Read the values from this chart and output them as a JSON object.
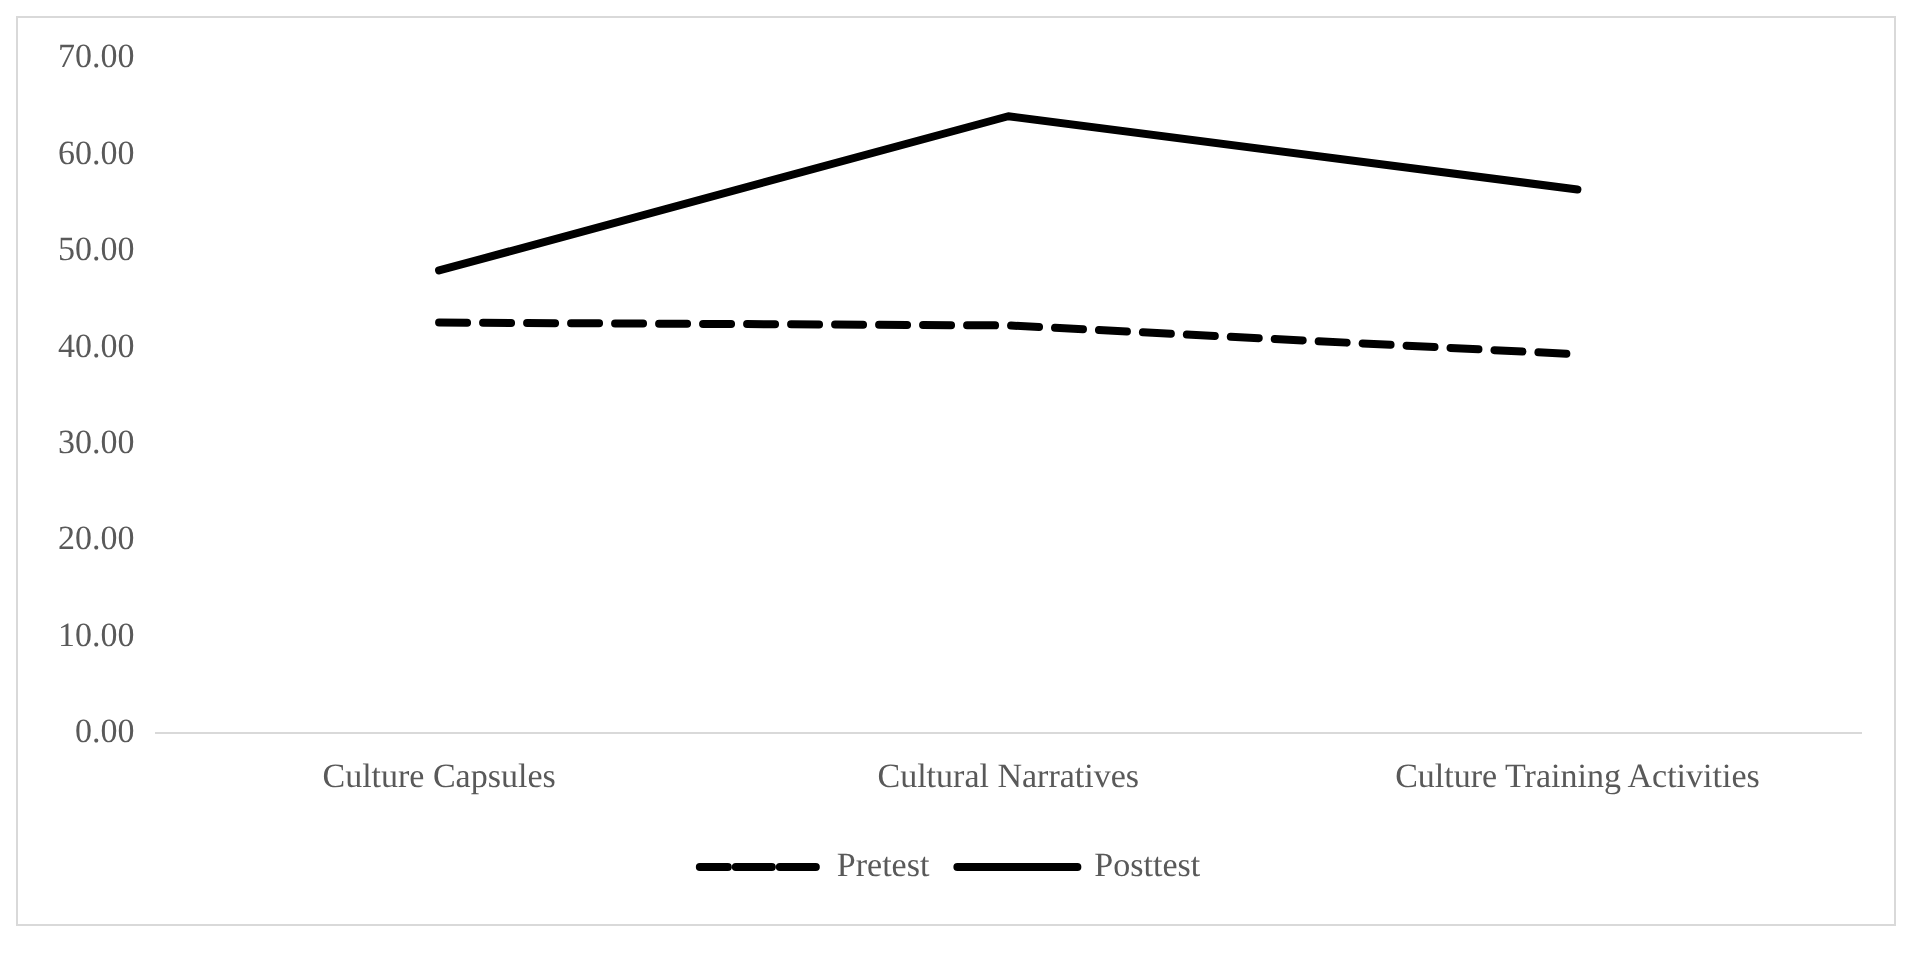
{
  "chart_data": {
    "type": "line",
    "categories": [
      "Culture Capsules",
      "Cultural Narratives",
      "Culture Training Activities"
    ],
    "series": [
      {
        "name": "Pretest",
        "color": "#000000",
        "line_style": "dashed",
        "values": [
          42.6,
          42.3,
          39.3
        ]
      },
      {
        "name": "Posttest",
        "color": "#000000",
        "line_style": "solid",
        "values": [
          48.0,
          64.0,
          56.4
        ]
      }
    ],
    "ylim": [
      0,
      70
    ],
    "yticks": [
      {
        "value": 0,
        "label": "0.00"
      },
      {
        "value": 10,
        "label": "10.00"
      },
      {
        "value": 20,
        "label": "20.00"
      },
      {
        "value": 30,
        "label": "30.00"
      },
      {
        "value": 40,
        "label": "40.00"
      },
      {
        "value": 50,
        "label": "50.00"
      },
      {
        "value": 60,
        "label": "60.00"
      },
      {
        "value": 70,
        "label": "70.00"
      }
    ],
    "grid": false,
    "legend": "bottom",
    "marker": "none"
  }
}
